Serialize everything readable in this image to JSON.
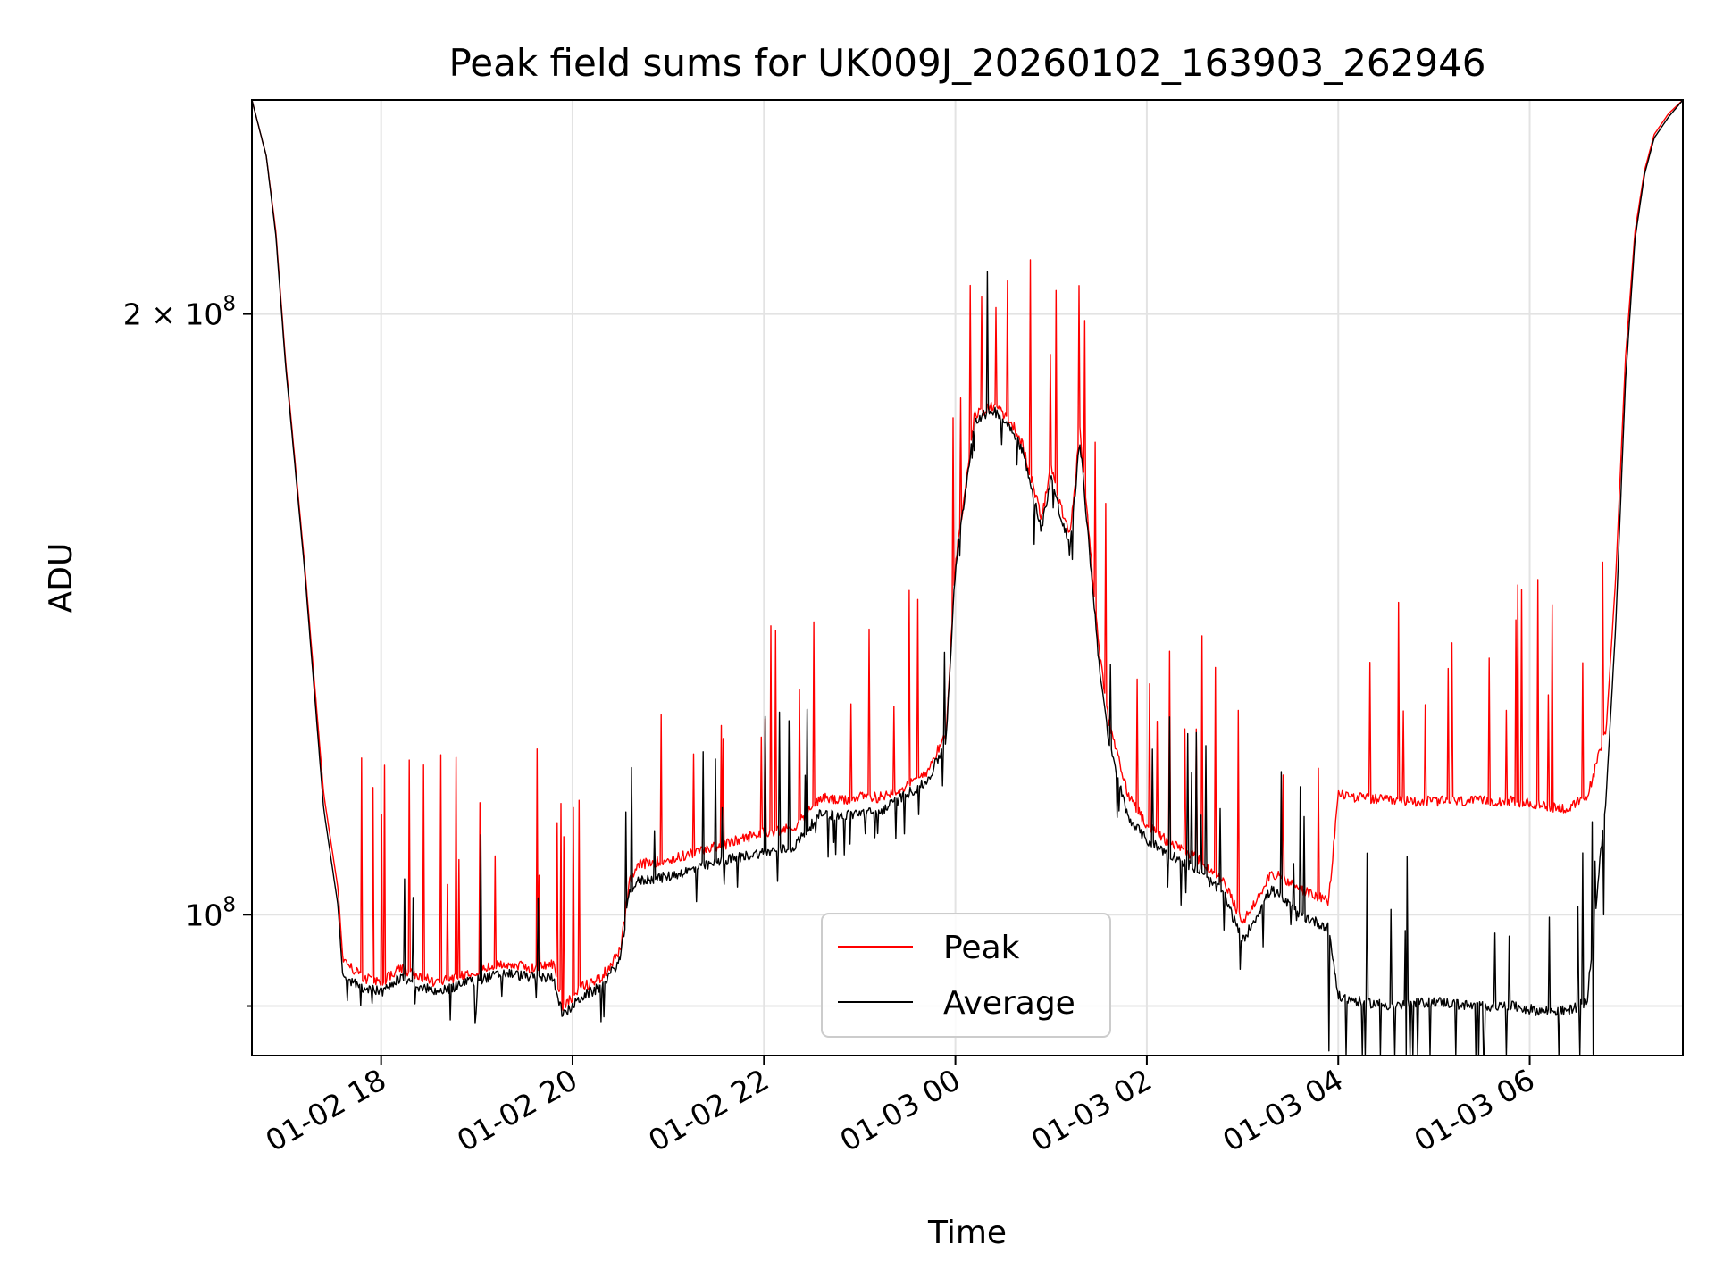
{
  "chart_data": {
    "type": "line",
    "title": "Peak field sums for UK009J_20260102_163903_262946",
    "xlabel": "Time",
    "ylabel": "ADU",
    "yscale": "log",
    "xlim_hours": [
      16.65,
      31.6
    ],
    "ylim": [
      85000000,
      256000000
    ],
    "grid": true,
    "legend_position": "lower-center",
    "x_ticks": [
      {
        "hours": 18,
        "label": "01-02 18"
      },
      {
        "hours": 20,
        "label": "01-02 20"
      },
      {
        "hours": 22,
        "label": "01-02 22"
      },
      {
        "hours": 24,
        "label": "01-03 00"
      },
      {
        "hours": 26,
        "label": "01-03 02"
      },
      {
        "hours": 28,
        "label": "01-03 04"
      },
      {
        "hours": 30,
        "label": "01-03 06"
      }
    ],
    "y_ticks": [
      {
        "value": 200000000,
        "label_base": "2 × 10",
        "label_exp": "8"
      },
      {
        "value": 100000000,
        "label_base": "10",
        "label_exp": "8"
      }
    ],
    "y_minor_ticks": [
      90000000
    ],
    "series": [
      {
        "name": "Peak",
        "color": "#ff0000",
        "x_hours": [
          16.65,
          16.8,
          16.9,
          17.0,
          17.2,
          17.4,
          17.55,
          17.6,
          17.8,
          18.0,
          18.2,
          18.4,
          18.6,
          18.9,
          19.1,
          19.3,
          19.6,
          19.8,
          19.9,
          20.1,
          20.3,
          20.5,
          20.6,
          20.7,
          21.0,
          21.3,
          21.6,
          22.0,
          22.3,
          22.6,
          22.8,
          23.0,
          23.2,
          23.5,
          23.7,
          23.9,
          24.0,
          24.2,
          24.4,
          24.6,
          24.7,
          24.8,
          24.9,
          25.0,
          25.1,
          25.2,
          25.3,
          25.5,
          25.6,
          25.8,
          26.0,
          26.2,
          26.5,
          26.8,
          27.0,
          27.3,
          27.6,
          27.9,
          28.0,
          28.2,
          28.6,
          29.0,
          29.4,
          29.8,
          30.1,
          30.4,
          30.6,
          30.8,
          30.9,
          31.0,
          31.1,
          31.2,
          31.3,
          31.45,
          31.6
        ],
        "values": [
          256000000,
          240000000,
          220000000,
          190000000,
          150000000,
          115000000,
          103000000,
          95000000,
          93000000,
          92500000,
          94000000,
          93000000,
          92500000,
          93500000,
          94000000,
          94500000,
          94000000,
          94500000,
          90000000,
          92000000,
          93000000,
          96000000,
          104000000,
          106000000,
          106500000,
          107500000,
          108500000,
          110000000,
          110500000,
          114500000,
          114000000,
          114500000,
          114500000,
          116000000,
          118000000,
          123000000,
          150000000,
          178000000,
          180000000,
          176000000,
          172000000,
          165000000,
          158000000,
          168000000,
          160000000,
          155000000,
          175000000,
          136000000,
          125000000,
          115000000,
          111000000,
          109000000,
          107000000,
          104000000,
          99000000,
          105000000,
          103000000,
          101500000,
          115000000,
          114500000,
          114000000,
          114000000,
          114000000,
          114000000,
          113500000,
          113000000,
          114500000,
          124000000,
          148000000,
          190000000,
          220000000,
          236000000,
          246000000,
          252000000,
          256000000
        ]
      },
      {
        "name": "Average",
        "color": "#000000",
        "x_hours": [
          16.65,
          16.8,
          16.9,
          17.0,
          17.2,
          17.4,
          17.55,
          17.6,
          17.8,
          18.0,
          18.2,
          18.4,
          18.6,
          18.9,
          19.1,
          19.3,
          19.6,
          19.8,
          19.9,
          20.1,
          20.3,
          20.5,
          20.6,
          20.7,
          21.0,
          21.3,
          21.6,
          22.0,
          22.3,
          22.6,
          22.8,
          23.0,
          23.2,
          23.5,
          23.7,
          23.9,
          24.0,
          24.2,
          24.4,
          24.6,
          24.7,
          24.8,
          24.9,
          25.0,
          25.1,
          25.2,
          25.3,
          25.5,
          25.6,
          25.8,
          26.0,
          26.2,
          26.5,
          26.8,
          27.0,
          27.3,
          27.6,
          27.9,
          28.0,
          28.2,
          28.6,
          29.0,
          29.4,
          29.8,
          30.1,
          30.4,
          30.6,
          30.8,
          30.9,
          31.0,
          31.1,
          31.2,
          31.3,
          31.45,
          31.6
        ],
        "values": [
          256000000,
          240000000,
          219000000,
          189000000,
          149000000,
          113000000,
          101000000,
          93000000,
          92000000,
          91500000,
          93000000,
          92000000,
          91500000,
          92500000,
          93000000,
          93500000,
          93000000,
          93000000,
          89000000,
          91000000,
          92000000,
          95000000,
          103000000,
          104000000,
          104500000,
          105500000,
          106500000,
          107500000,
          108000000,
          112500000,
          112000000,
          112500000,
          112500000,
          115000000,
          116500000,
          122000000,
          149000000,
          177000000,
          179000000,
          175000000,
          171000000,
          163000000,
          156000000,
          166000000,
          158000000,
          153000000,
          173000000,
          134000000,
          122000000,
          112000000,
          109000000,
          107500000,
          105500000,
          102500000,
          97000000,
          103000000,
          100000000,
          98500000,
          91000000,
          90500000,
          90000000,
          90500000,
          90000000,
          90000000,
          89500000,
          89500000,
          90500000,
          115000000,
          140000000,
          185000000,
          218000000,
          235000000,
          245000000,
          251000000,
          256000000
        ]
      }
    ]
  }
}
